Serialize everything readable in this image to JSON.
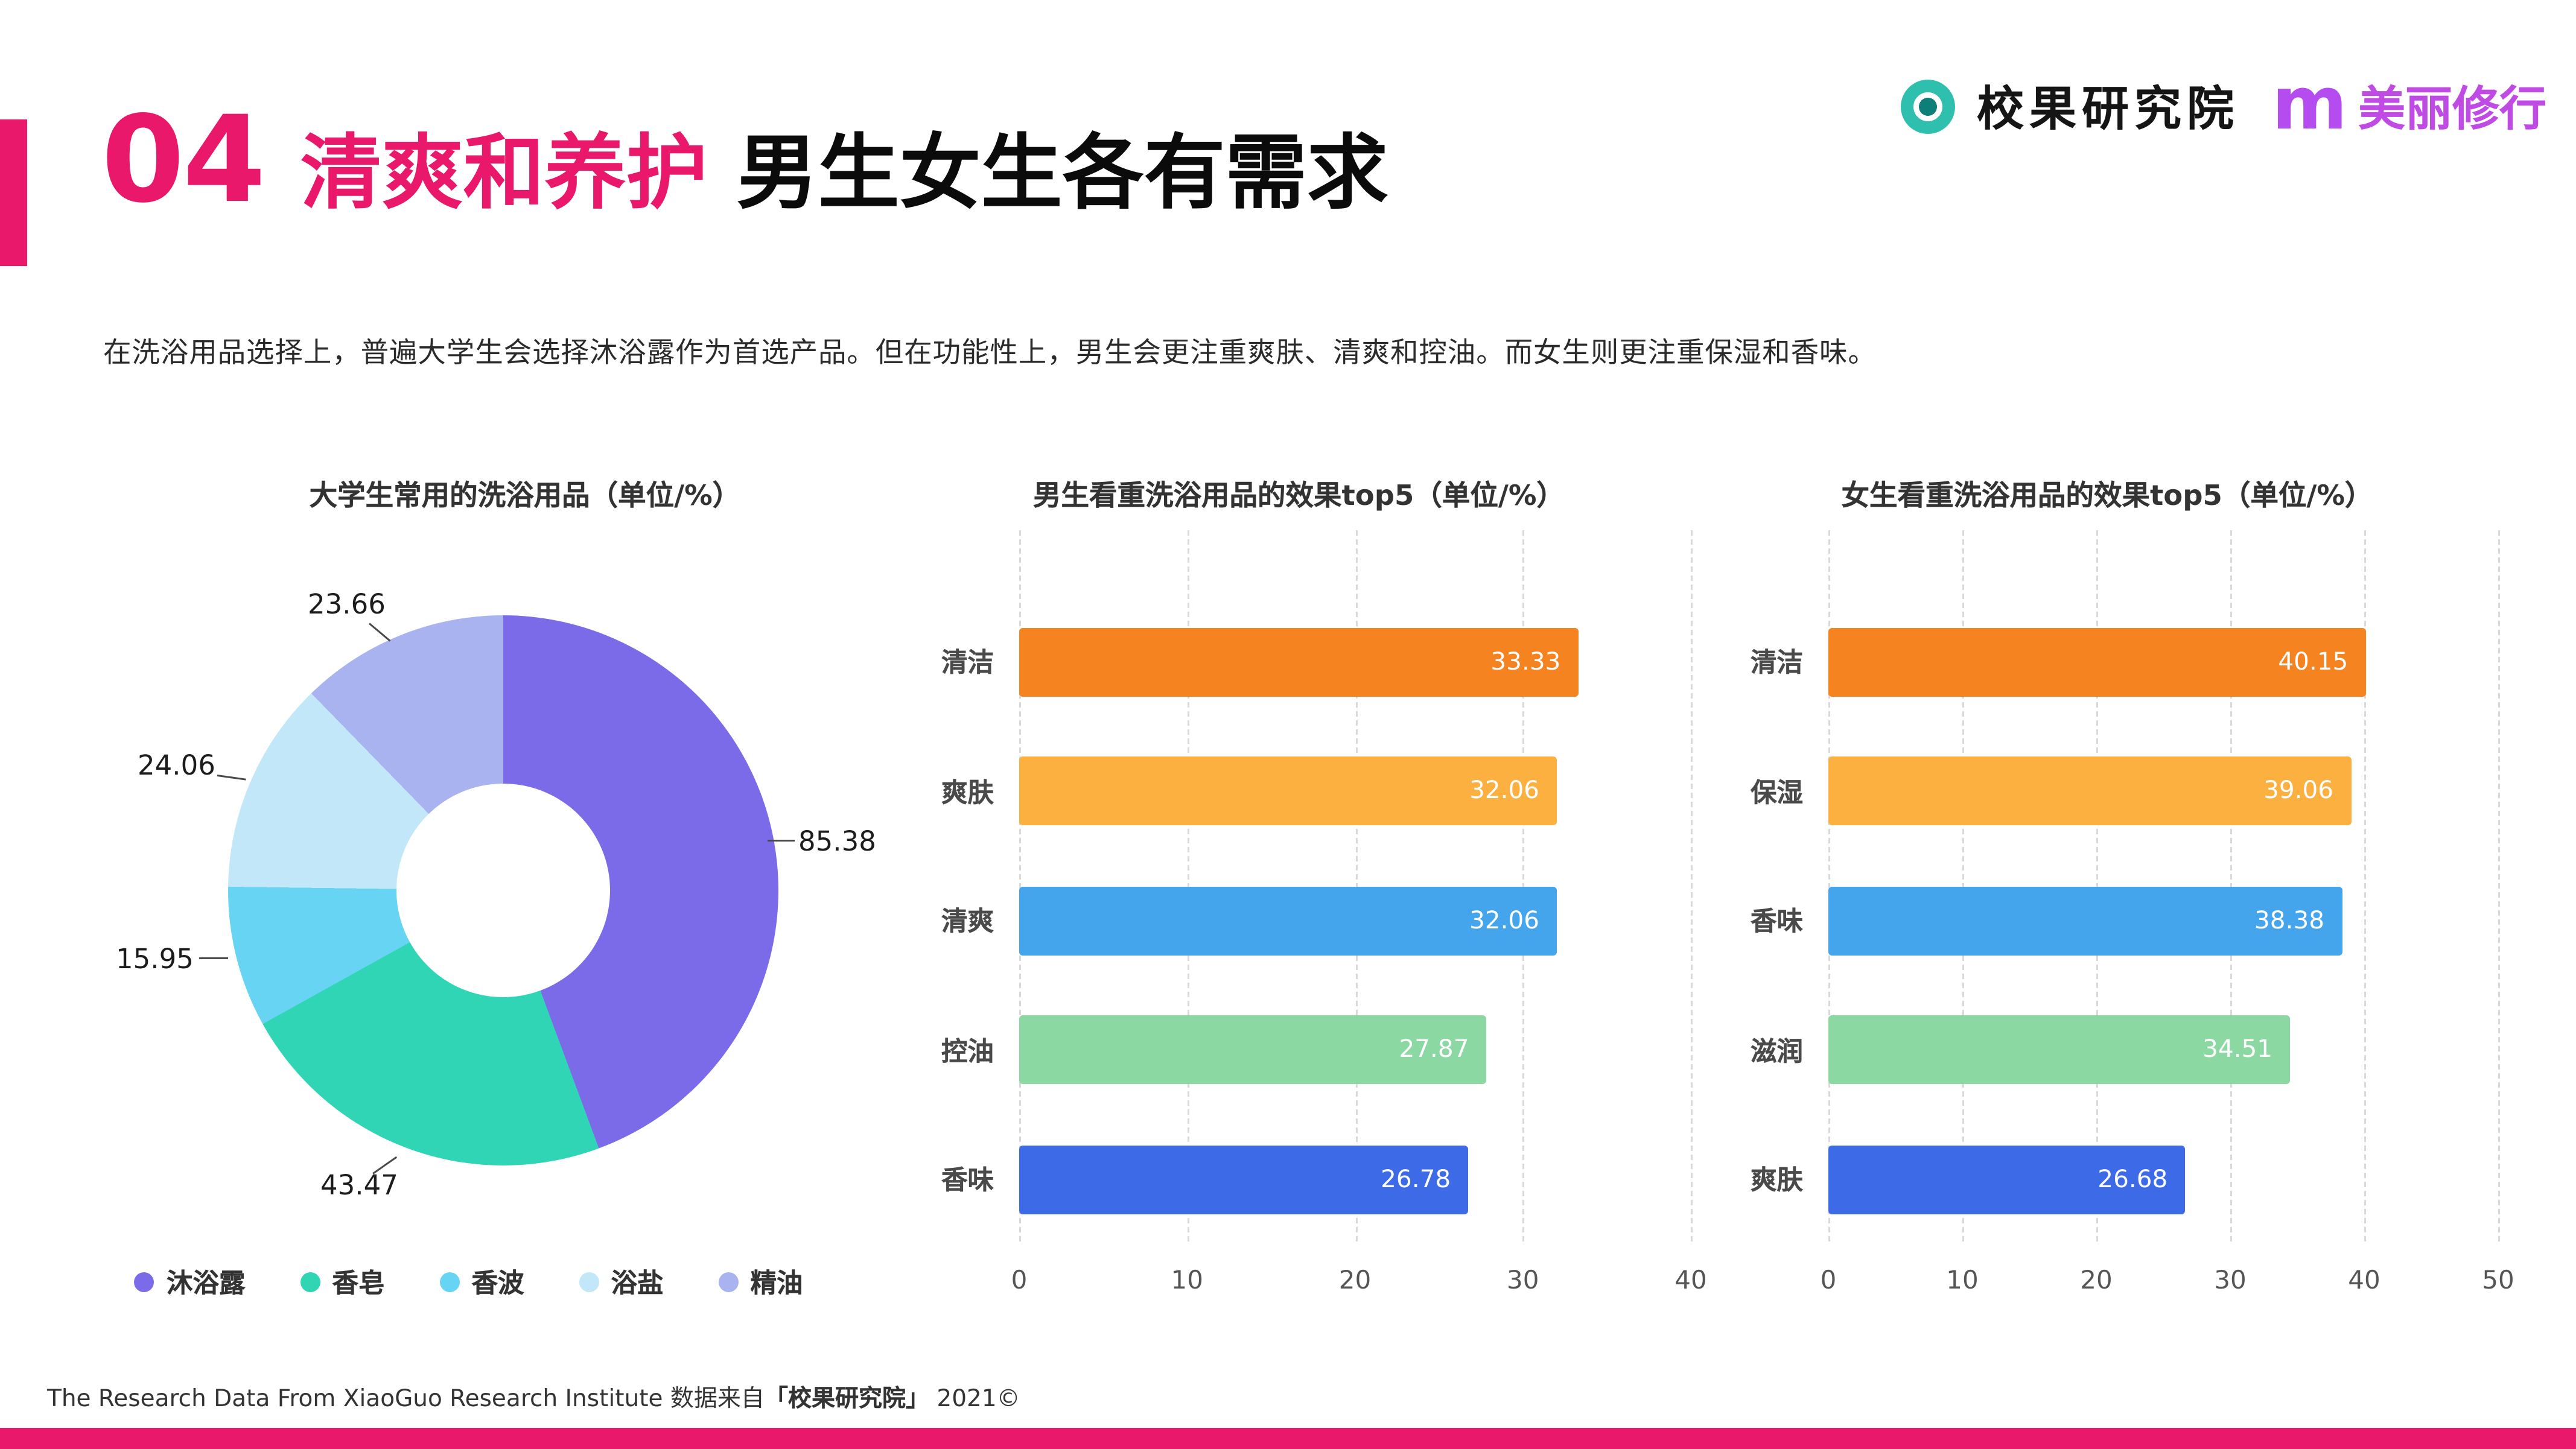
{
  "page": {
    "section_number": "04",
    "title_highlight": "清爽和养护",
    "title_rest": "男生女生各有需求",
    "description": "在洗浴用品选择上，普遍大学生会选择沐浴露作为首选产品。但在功能性上，男生会更注重爽肤、清爽和控油。而女生则更注重保湿和香味。",
    "accent_color": "#E9186B"
  },
  "brand": {
    "left_logo_name": "校果研究院",
    "left_logo_color": "#2FBFAE",
    "right_logo_mark": "m",
    "right_logo_name": "美丽修行",
    "right_logo_color": "#B44CF0"
  },
  "footer": {
    "text_before": "The Research Data From XiaoGuo Research Institute 数据来自",
    "source": "「校果研究院」",
    "text_after": " 2021©"
  },
  "chart_data": [
    {
      "type": "pie",
      "subtype": "donut",
      "title": "大学生常用的洗浴用品（单位/%）",
      "categories": [
        "沐浴露",
        "香皂",
        "香波",
        "浴盐",
        "精油"
      ],
      "values": [
        85.38,
        43.47,
        15.95,
        24.06,
        23.66
      ],
      "colors": [
        "#7C6BE8",
        "#30D5B5",
        "#66D4F2",
        "#C2E7F8",
        "#A8B3F0"
      ],
      "legend_position": "bottom",
      "value_label_format": "two-decimals"
    },
    {
      "type": "bar",
      "orientation": "horizontal",
      "title": "男生看重洗浴用品的效果top5（单位/%）",
      "categories": [
        "清洁",
        "爽肤",
        "清爽",
        "控油",
        "香味"
      ],
      "values": [
        33.33,
        32.06,
        32.06,
        27.87,
        26.78
      ],
      "colors": [
        "#F5831F",
        "#FBB040",
        "#45A5EC",
        "#8CD8A2",
        "#3D6BE8"
      ],
      "xlim": [
        0,
        40
      ],
      "xticks": [
        0,
        10,
        20,
        30,
        40
      ],
      "grid": "vertical-dashed",
      "value_labels": "inside-end-white"
    },
    {
      "type": "bar",
      "orientation": "horizontal",
      "title": "女生看重洗浴用品的效果top5（单位/%）",
      "categories": [
        "清洁",
        "保湿",
        "香味",
        "滋润",
        "爽肤"
      ],
      "values": [
        40.15,
        39.06,
        38.38,
        34.51,
        26.68
      ],
      "colors": [
        "#F5831F",
        "#FBB040",
        "#45A5EC",
        "#8CD8A2",
        "#3D6BE8"
      ],
      "xlim": [
        0,
        50
      ],
      "xticks": [
        0,
        10,
        20,
        30,
        40,
        50
      ],
      "grid": "vertical-dashed",
      "value_labels": "inside-end-white"
    }
  ]
}
